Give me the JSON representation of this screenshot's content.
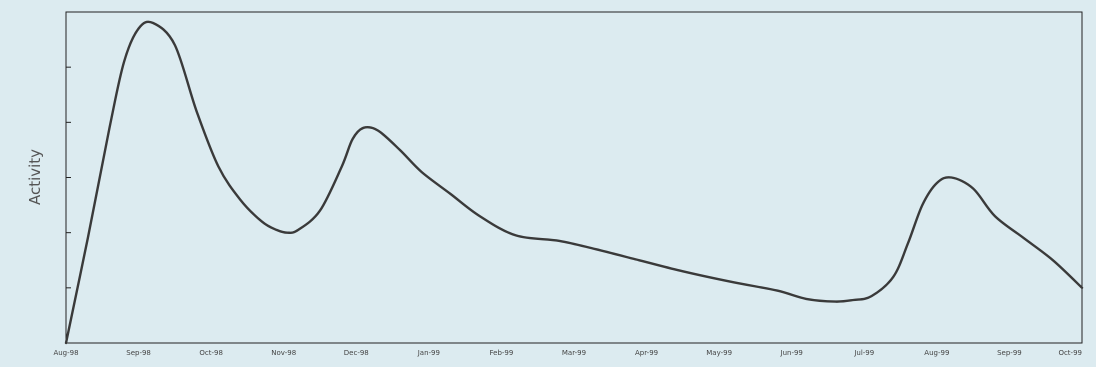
{
  "chart_data": {
    "type": "line",
    "title": "",
    "xlabel": "",
    "ylabel": "Activity",
    "grid": false,
    "x_ticks": [
      "Aug-98",
      "Sep-98",
      "Oct-98",
      "Nov-98",
      "Dec-98",
      "Jan-99",
      "Feb-99",
      "Mar-99",
      "Apr-99",
      "May-99",
      "Jun-99",
      "Jul-99",
      "Aug-99",
      "Sep-99",
      "Oct-99"
    ],
    "ylim": [
      0,
      6
    ],
    "y_tick_count": 7,
    "x_values": [
      0,
      0.3,
      0.6,
      0.8,
      1.0,
      1.2,
      1.5,
      1.8,
      2.1,
      2.4,
      2.7,
      2.9,
      3.05,
      3.2,
      3.5,
      3.8,
      3.95,
      4.1,
      4.3,
      4.6,
      4.9,
      5.3,
      5.7,
      6.2,
      6.8,
      7.3,
      7.9,
      8.5,
      9.2,
      9.8,
      10.2,
      10.6,
      10.85,
      11.1,
      11.4,
      11.6,
      11.8,
      12.0,
      12.2,
      12.5,
      12.8,
      13.2,
      13.6,
      14.0
    ],
    "y_values": [
      0.0,
      1.9,
      3.9,
      5.1,
      5.7,
      5.8,
      5.4,
      4.2,
      3.2,
      2.6,
      2.2,
      2.05,
      2.0,
      2.05,
      2.4,
      3.2,
      3.7,
      3.9,
      3.85,
      3.5,
      3.1,
      2.7,
      2.3,
      1.95,
      1.85,
      1.7,
      1.5,
      1.3,
      1.1,
      0.95,
      0.8,
      0.75,
      0.78,
      0.85,
      1.2,
      1.8,
      2.5,
      2.9,
      3.0,
      2.8,
      2.3,
      1.9,
      1.5,
      1.0
    ]
  }
}
